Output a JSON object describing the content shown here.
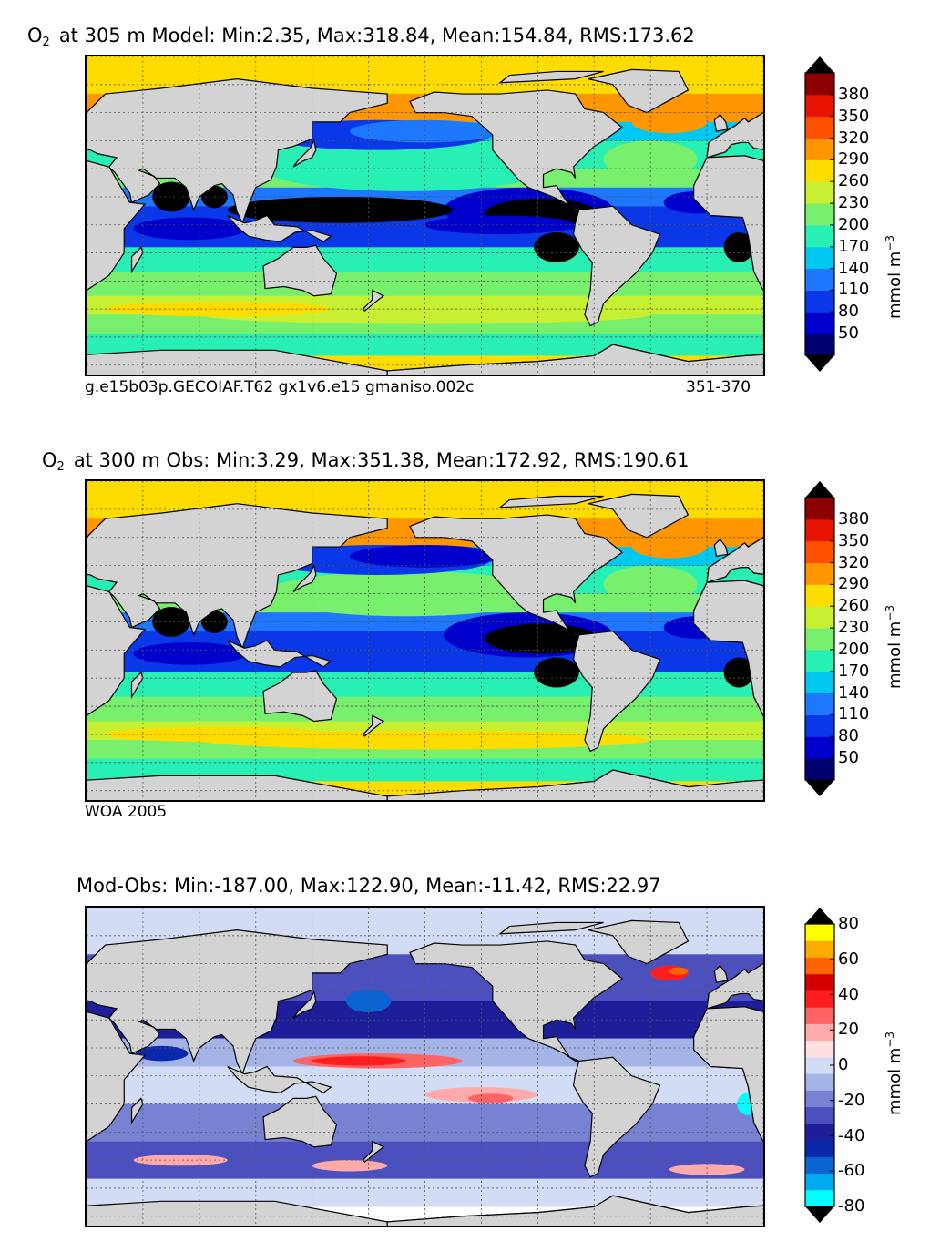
{
  "panels": [
    {
      "id": "model",
      "title_prefix": "O",
      "title_sub": "2",
      "title_rest": "at 305 m Model: Min:2.35, Max:318.84, Mean:154.84, RMS:173.62",
      "caption_left": "g.e15b03p.GECOIAF.T62 gx1v6.e15 gmaniso.002c",
      "caption_right": "351-370"
    },
    {
      "id": "obs",
      "title_prefix": "O",
      "title_sub": "2",
      "title_rest": "at 300 m Obs: Min:3.29, Max:351.38, Mean:172.92, RMS:190.61",
      "caption_left": "WOA 2005",
      "caption_right": ""
    },
    {
      "id": "diff",
      "title_prefix": "",
      "title_sub": "",
      "title_rest": "Mod-Obs: Min:-187.00, Max:122.90, Mean:-11.42, RMS:22.97",
      "caption_left": "",
      "caption_right": ""
    }
  ],
  "colorbars": {
    "o2": {
      "unit": "mmol m",
      "unit_sup": "−3",
      "ticks": [
        "50",
        "80",
        "110",
        "140",
        "170",
        "200",
        "230",
        "260",
        "290",
        "320",
        "350",
        "380"
      ],
      "colors": [
        "#00006e",
        "#0000cc",
        "#0a38e8",
        "#1e78ff",
        "#00c8f0",
        "#28f0b4",
        "#78f06e",
        "#c8f032",
        "#ffdc00",
        "#ff9600",
        "#ff5000",
        "#e61400",
        "#8c0000"
      ],
      "under_color": "#000000",
      "over_color": "#000000"
    },
    "diff": {
      "unit": "mmol m",
      "unit_sup": "−3",
      "ticks": [
        "-80",
        "-60",
        "-40",
        "-20",
        "0",
        "20",
        "40",
        "60",
        "80"
      ],
      "colors": [
        "#00ffff",
        "#00aaee",
        "#0a64d2",
        "#0a28aa",
        "#1e1e9b",
        "#4b50be",
        "#7882d2",
        "#a5b4e6",
        "#d2dcf5",
        "#ffe0e0",
        "#ffaaaa",
        "#ff6464",
        "#ff1e1e",
        "#d20000",
        "#ff6400",
        "#ffaa00",
        "#ffff00"
      ]
    }
  },
  "chart_data": [
    {
      "type": "heatmap",
      "title": "O2 at 305 m Model: Min:2.35, Max:318.84, Mean:154.84, RMS:173.62",
      "variable": "O2",
      "depth_m": 305,
      "source": "Model",
      "stats": {
        "min": 2.35,
        "max": 318.84,
        "mean": 154.84,
        "rms": 173.62
      },
      "colorbar_levels": [
        50,
        80,
        110,
        140,
        170,
        200,
        230,
        260,
        290,
        320,
        350,
        380
      ],
      "units": "mmol m-3",
      "x_range_lon": [
        20,
        380
      ],
      "y_range_lat": [
        -80,
        90
      ]
    },
    {
      "type": "heatmap",
      "title": "O2 at 300 m Obs: Min:3.29, Max:351.38, Mean:172.92, RMS:190.61",
      "variable": "O2",
      "depth_m": 300,
      "source": "WOA 2005",
      "stats": {
        "min": 3.29,
        "max": 351.38,
        "mean": 172.92,
        "rms": 190.61
      },
      "colorbar_levels": [
        50,
        80,
        110,
        140,
        170,
        200,
        230,
        260,
        290,
        320,
        350,
        380
      ],
      "units": "mmol m-3",
      "x_range_lon": [
        20,
        380
      ],
      "y_range_lat": [
        -80,
        90
      ]
    },
    {
      "type": "heatmap",
      "title": "Mod-Obs: Min:-187.00, Max:122.90, Mean:-11.42, RMS:22.97",
      "variable": "O2 difference",
      "source": "Model minus Obs",
      "stats": {
        "min": -187.0,
        "max": 122.9,
        "mean": -11.42,
        "rms": 22.97
      },
      "colorbar_levels": [
        -80,
        -70,
        -60,
        -50,
        -40,
        -30,
        -20,
        -10,
        0,
        10,
        20,
        30,
        40,
        50,
        60,
        70,
        80
      ],
      "units": "mmol m-3",
      "x_range_lon": [
        20,
        380
      ],
      "y_range_lat": [
        -80,
        90
      ]
    }
  ]
}
